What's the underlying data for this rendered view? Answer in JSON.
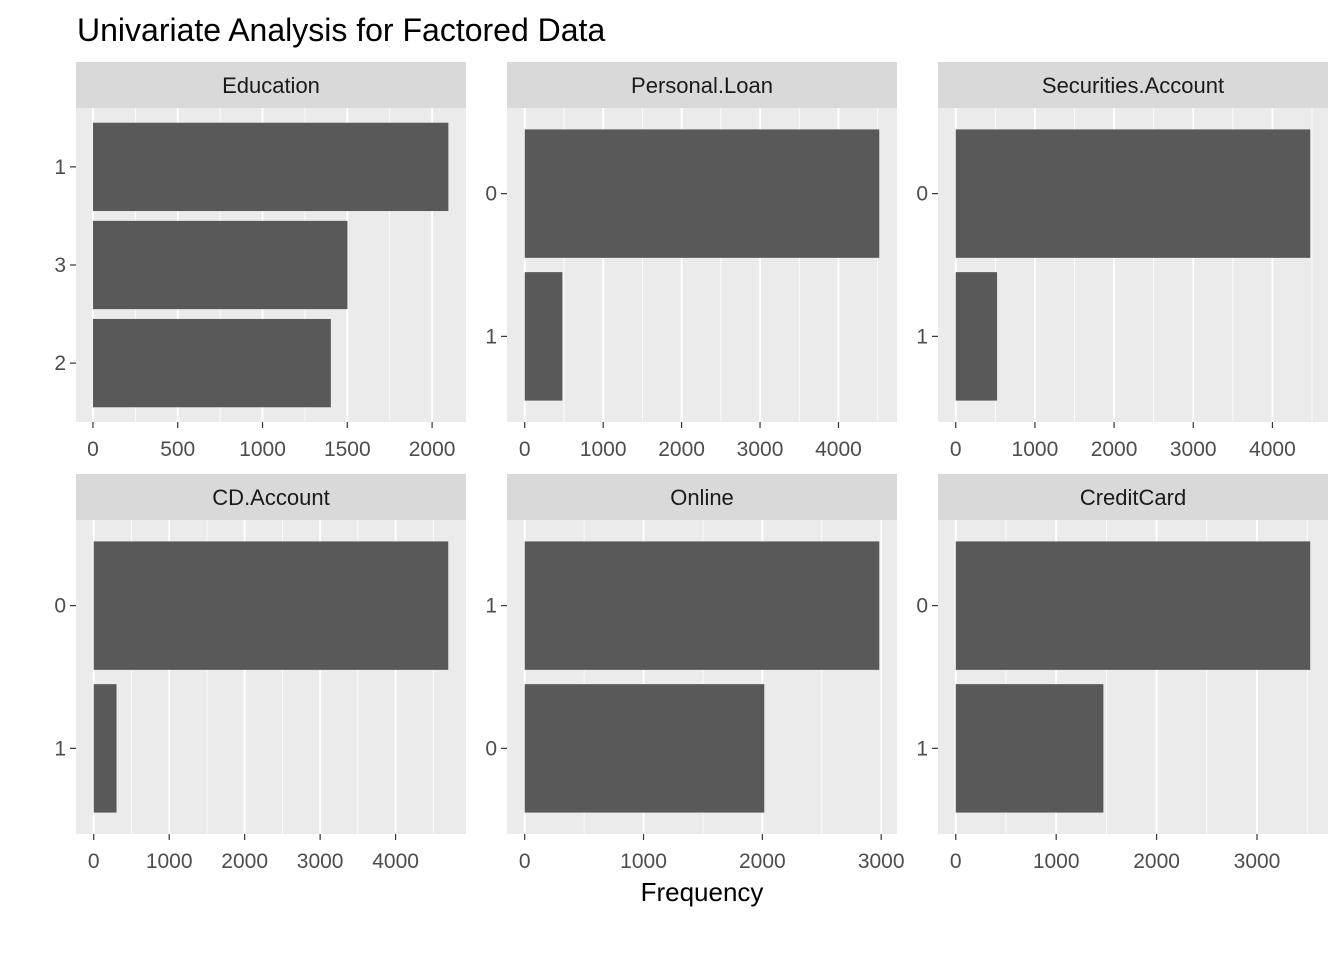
{
  "title": "Univariate Analysis for Factored Data",
  "xlabel": "Frequency",
  "colors": {
    "panel_bg": "#EBEBEB",
    "strip_bg": "#D9D9D9",
    "bar": "#595959",
    "grid": "#FFFFFF"
  },
  "chart_data": [
    {
      "type": "bar",
      "orientation": "horizontal",
      "facet": "Education",
      "categories": [
        "1",
        "3",
        "2"
      ],
      "values": [
        2096,
        1501,
        1403
      ],
      "xticks": [
        0,
        500,
        1000,
        1500,
        2000
      ],
      "xlim": [
        -100,
        2200
      ]
    },
    {
      "type": "bar",
      "orientation": "horizontal",
      "facet": "Personal.Loan",
      "categories": [
        "0",
        "1"
      ],
      "values": [
        4520,
        480
      ],
      "xticks": [
        0,
        1000,
        2000,
        3000,
        4000
      ],
      "xlim": [
        -226,
        4746
      ]
    },
    {
      "type": "bar",
      "orientation": "horizontal",
      "facet": "Securities.Account",
      "categories": [
        "0",
        "1"
      ],
      "values": [
        4478,
        522
      ],
      "xticks": [
        0,
        1000,
        2000,
        3000,
        4000
      ],
      "xlim": [
        -224,
        4702
      ]
    },
    {
      "type": "bar",
      "orientation": "horizontal",
      "facet": "CD.Account",
      "categories": [
        "0",
        "1"
      ],
      "values": [
        4698,
        302
      ],
      "xticks": [
        0,
        1000,
        2000,
        3000,
        4000
      ],
      "xlim": [
        -235,
        4933
      ]
    },
    {
      "type": "bar",
      "orientation": "horizontal",
      "facet": "Online",
      "categories": [
        "1",
        "0"
      ],
      "values": [
        2984,
        2016
      ],
      "xticks": [
        0,
        1000,
        2000,
        3000
      ],
      "xlim": [
        -149,
        3133
      ]
    },
    {
      "type": "bar",
      "orientation": "horizontal",
      "facet": "CreditCard",
      "categories": [
        "0",
        "1"
      ],
      "values": [
        3530,
        1470
      ],
      "xticks": [
        0,
        1000,
        2000,
        3000
      ],
      "xlim": [
        -177,
        3707
      ]
    }
  ]
}
